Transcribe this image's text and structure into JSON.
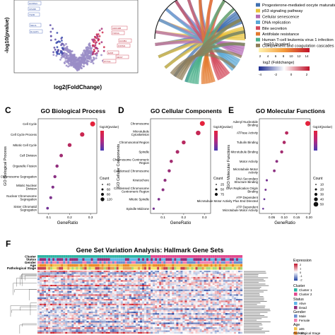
{
  "panelA": {
    "ylabel": "-log10(pvalue)",
    "xlabel": "log2(FoldChange)",
    "left_labels": [
      "HOXB13",
      "CPA6B",
      "TNXB",
      "SEL1L",
      "DLGAP1"
    ],
    "right_labels": [
      "CDKN2B",
      "TOP2A",
      "CCNB1",
      "FOXM1",
      "E2F8",
      "MKI67",
      "PTTG1"
    ]
  },
  "panelB": {
    "legend_items": [
      "Progesterone-mediated oocyte maturation",
      "p53 signaling pathway",
      "Cellular senescence",
      "DNA replication",
      "Bile secretion",
      "Antifolate resistance",
      "Human T-cell leukemia virus 1 infection",
      "Complement and coagulation cascades"
    ],
    "legend_colors": [
      "#3f6fb0",
      "#e8c23a",
      "#b46bb5",
      "#5aa7d6",
      "#d3495b",
      "#e37a2e",
      "#4bb08b",
      "#8f7d59"
    ],
    "scale1_title": "-log10 (p-value)",
    "scale1_ticks": [
      "2",
      "4",
      "6",
      "8",
      "10",
      "12",
      "14"
    ],
    "scale2_title": "log2 (Foldchange)",
    "scale2_ticks": [
      "-4",
      "-2",
      "0",
      "2"
    ]
  },
  "panelC": {
    "letter": "C",
    "title": "GO Biological Process",
    "ylabel": "GO Biological Process",
    "xlabel": "GeneRatio",
    "legend_title": "-log10(pvalue)",
    "count_title": "Count",
    "count_values": [
      "40",
      "60",
      "80",
      "120"
    ]
  },
  "panelD": {
    "letter": "D",
    "title": "GO Cellular Components",
    "ylabel": "GO Cellular Components",
    "xlabel": "GeneRatio",
    "legend_title": "-log10(pvalue)",
    "count_title": "Count",
    "count_values": [
      "25",
      "50",
      "75"
    ]
  },
  "panelE": {
    "letter": "E",
    "title": "GO Molecular Functions",
    "ylabel": "GO Molecular Functions",
    "xlabel": "GeneRatio",
    "legend_title": "-log10(pvalue)",
    "count_title": "Count",
    "count_values": [
      "10",
      "20",
      "30",
      "40",
      "50"
    ]
  },
  "panelF": {
    "letter": "F",
    "title": "Gene Set Variation Analysis: Hallmark Gene Sets",
    "track_labels": [
      "Cluster",
      "Status",
      "Gender",
      "Age",
      "Pathological Stage"
    ],
    "legend": {
      "expression_title": "Expression",
      "expression_ticks": [
        "2",
        "1",
        "0",
        "-1",
        "-2"
      ],
      "cluster_title": "Cluster",
      "cluster_items": [
        "Cluster 1",
        "Cluster 2"
      ],
      "status_title": "Status",
      "status_items": [
        "Alive",
        "Dead"
      ],
      "gender_title": "Gender",
      "gender_items": [
        "Male",
        "Female"
      ],
      "age_title": "Age",
      "age_items": [
        "≥65",
        "<65"
      ],
      "stage_title": "Pathological Stage"
    }
  },
  "chart_data": [
    {
      "type": "scatter",
      "panel": "C",
      "title": "GO Biological Process",
      "xlabel": "GeneRatio",
      "ylabel": "GO Biological Process",
      "xlim": [
        0.05,
        0.33
      ],
      "x_ticks": [
        "0.1",
        "0.2",
        "0.3"
      ],
      "categories": [
        "Cell Cycle",
        "Cell Cycle Process",
        "Mitotic Cell Cycle",
        "Cell Division",
        "Organelle Fission",
        "Chromosome Segregation",
        "Mitotic Nuclear Division",
        "Nuclear Chromosome Segregation",
        "Sister Chromatid Segregation"
      ],
      "x": [
        0.31,
        0.26,
        0.2,
        0.16,
        0.14,
        0.13,
        0.12,
        0.11,
        0.095
      ],
      "count": [
        125,
        105,
        85,
        70,
        60,
        58,
        50,
        48,
        40
      ],
      "neglog10p": [
        60,
        50,
        42,
        33,
        28,
        25,
        22,
        20,
        16
      ]
    },
    {
      "type": "scatter",
      "panel": "D",
      "title": "GO Cellular Components",
      "xlabel": "GeneRatio",
      "ylabel": "GO Cellular Components",
      "xlim": [
        0.04,
        0.33
      ],
      "x_ticks": [
        "0.1",
        "0.2",
        "0.3"
      ],
      "categories": [
        "Chromosome",
        "Microtubule Cytoskeleton",
        "Chromosomal Region",
        "Spindle",
        "Chromosome Centromeric Region",
        "Condensed Chromosome",
        "Kinetochore",
        "Condensed Chromosome Centromeric Region",
        "Mitotic Spindle",
        "Spindle Midzone"
      ],
      "x": [
        0.29,
        0.27,
        0.2,
        0.17,
        0.14,
        0.13,
        0.11,
        0.1,
        0.08,
        0.055
      ],
      "count": [
        80,
        72,
        55,
        48,
        40,
        38,
        32,
        30,
        24,
        18
      ],
      "neglog10p": [
        35,
        28,
        25,
        22,
        20,
        18,
        16,
        15,
        12,
        10
      ]
    },
    {
      "type": "scatter",
      "panel": "E",
      "title": "GO Molecular Functions",
      "xlabel": "GeneRatio",
      "ylabel": "GO Molecular Functions",
      "xlim": [
        0.0,
        0.205
      ],
      "x_ticks": [
        "0.05",
        "0.10",
        "0.15",
        "0.20"
      ],
      "categories": [
        "Adenyl Nucleotide Binding",
        "ATPase Activity",
        "Tubulin Binding",
        "Microtubule Binding",
        "Motor Activity",
        "Microtubule Motor Activity",
        "DNA Secondary Structure Binding",
        "DNA Replication Origin Binding",
        "ATP Dependent Microtubule Motor Activity Plus End Directed",
        "ATP Dependent Microtubule Motor Activity"
      ],
      "x": [
        0.195,
        0.11,
        0.1,
        0.09,
        0.07,
        0.06,
        0.03,
        0.025,
        0.02,
        0.015
      ],
      "count": [
        55,
        30,
        28,
        25,
        20,
        18,
        10,
        8,
        6,
        5
      ],
      "neglog10p": [
        14,
        10,
        9,
        8,
        6,
        6,
        4,
        4,
        3,
        3
      ]
    }
  ]
}
